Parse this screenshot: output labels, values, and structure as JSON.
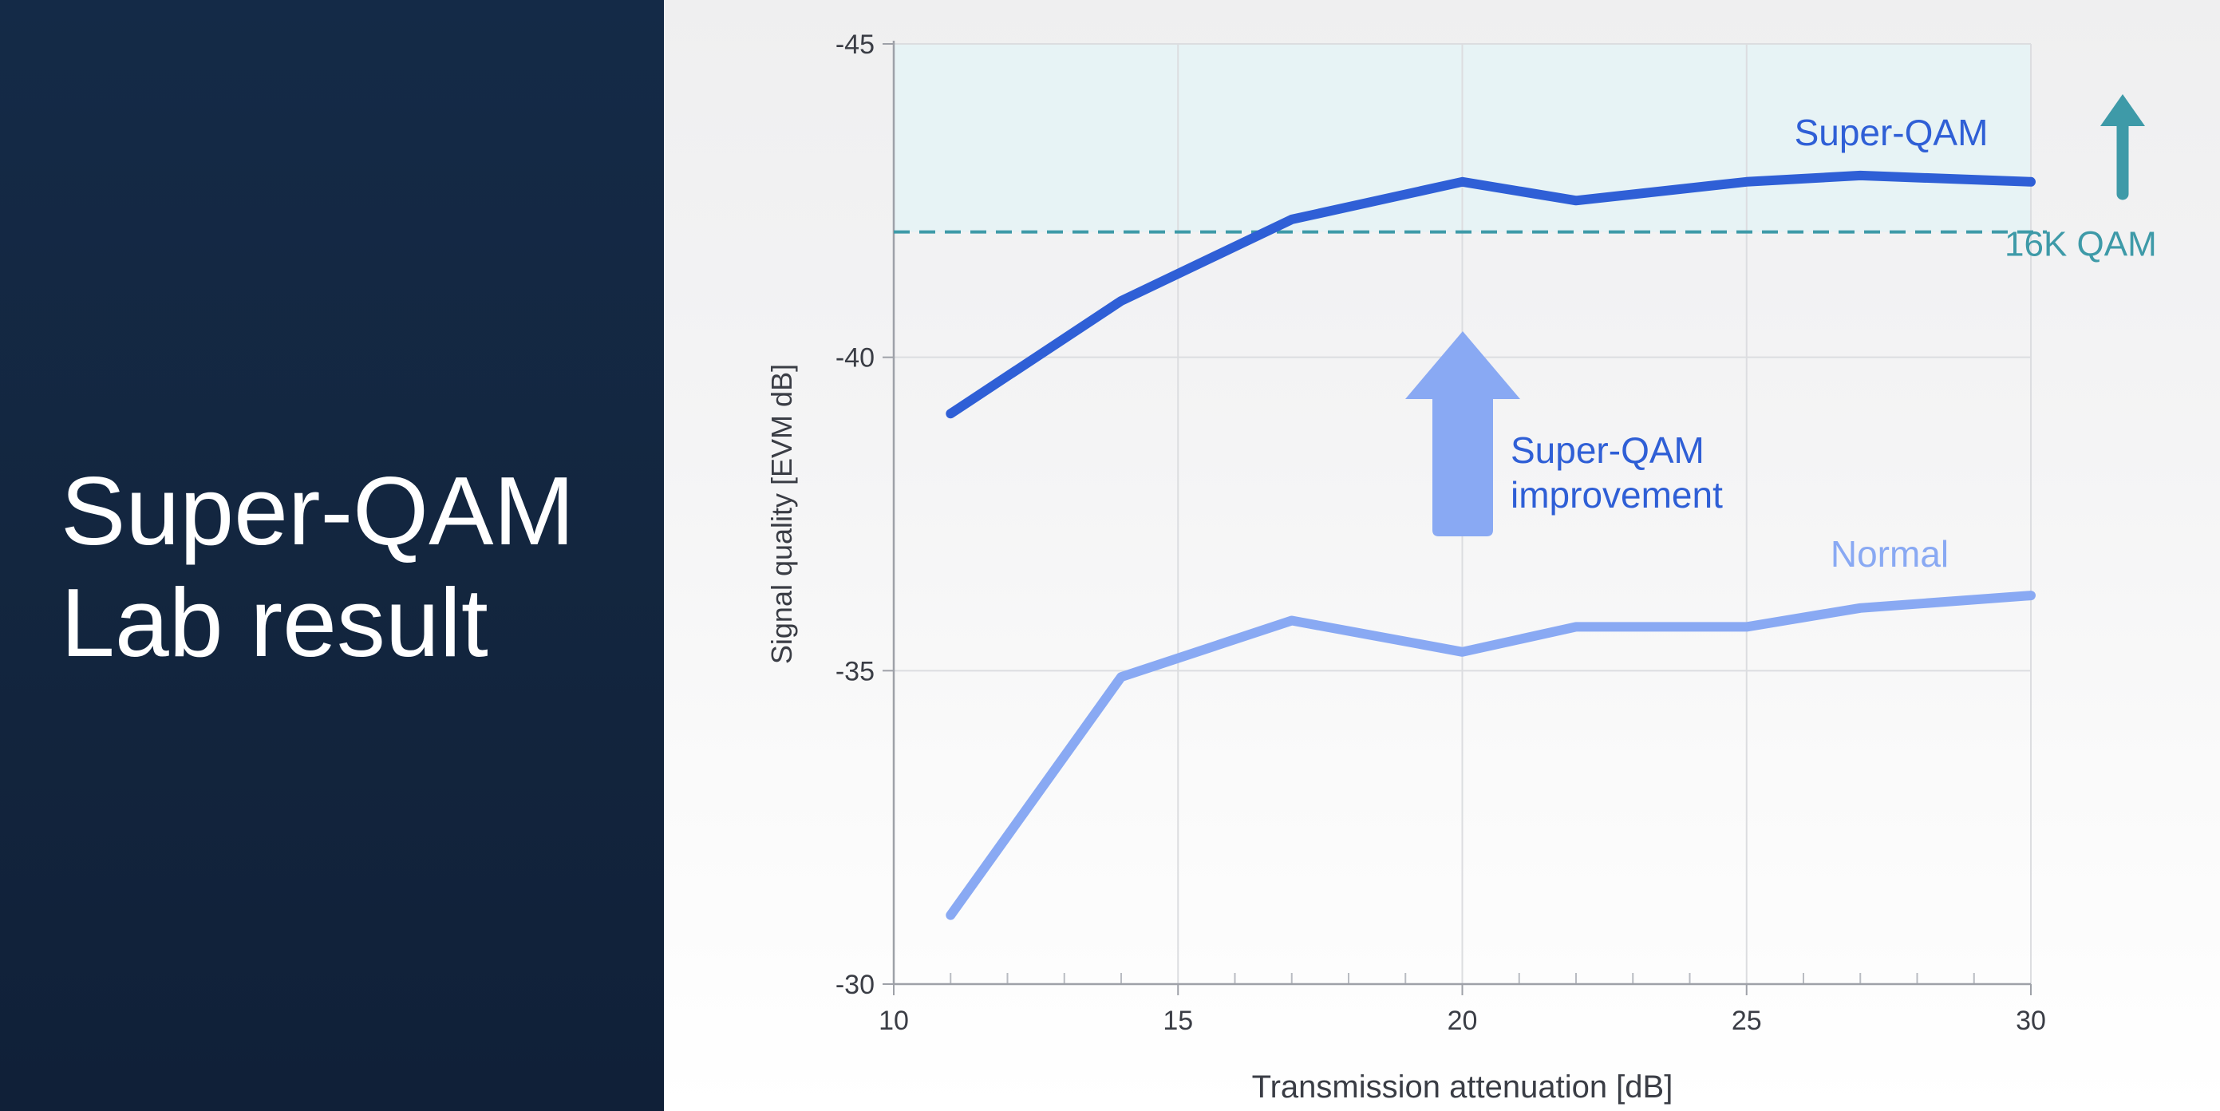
{
  "slide": {
    "title_lines": [
      "Super-QAM",
      "Lab result"
    ]
  },
  "colors": {
    "super_qam": "#2f5fd6",
    "normal": "#89a9f3",
    "threshold": "#3e9aa8",
    "improvement_arrow": "#89a9f3",
    "band_fill": "#e6f3f5"
  },
  "chart_data": {
    "type": "line",
    "xlabel": "Transmission attenuation [dB]",
    "ylabel": "Signal quality [EVM dB]",
    "xlim": [
      10,
      30
    ],
    "ylim": [
      -30,
      -45
    ],
    "y_direction": "inverted",
    "x_ticks": [
      10,
      15,
      20,
      25,
      30
    ],
    "y_ticks": [
      -30,
      -35,
      -40,
      -45
    ],
    "grid": true,
    "series": [
      {
        "name": "Super-QAM",
        "x": [
          11,
          14,
          17,
          20,
          22,
          25,
          27,
          30
        ],
        "y": [
          -39.1,
          -40.9,
          -42.2,
          -42.8,
          -42.5,
          -42.8,
          -42.9,
          -42.8
        ]
      },
      {
        "name": "Normal",
        "x": [
          11,
          14,
          17,
          20,
          22,
          25,
          27,
          30
        ],
        "y": [
          -31.1,
          -34.9,
          -35.8,
          -35.3,
          -35.7,
          -35.7,
          -36.0,
          -36.2
        ]
      }
    ],
    "threshold": {
      "label": "16K QAM",
      "y": -42.0,
      "style": "dashed",
      "band_above": true
    },
    "annotations": [
      {
        "label_lines": [
          "Super-QAM",
          "improvement"
        ],
        "type": "arrow-up"
      }
    ]
  }
}
